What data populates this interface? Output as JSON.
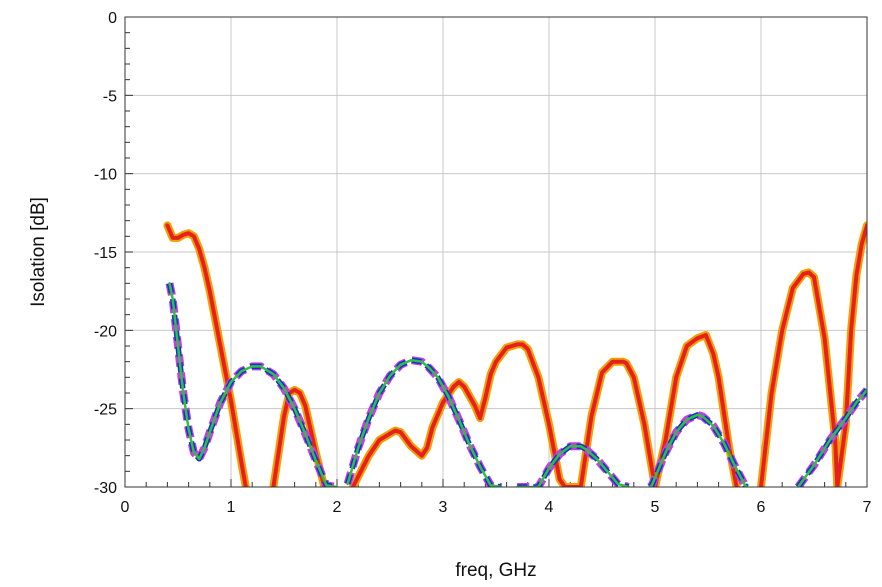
{
  "chart_data": {
    "type": "line",
    "xlabel": "freq, GHz",
    "ylabel": "Isolation [dB]",
    "xlim": [
      0,
      7
    ],
    "ylim": [
      -30,
      0
    ],
    "xticks": [
      0,
      1,
      2,
      3,
      4,
      5,
      6,
      7
    ],
    "yticks": [
      0,
      -5,
      -10,
      -15,
      -20,
      -25,
      -30
    ],
    "grid": true,
    "series": [
      {
        "color": "#f0a000",
        "stroke": "thick",
        "x": [
          0.4,
          0.45,
          0.5,
          0.55,
          0.6,
          0.65,
          0.7,
          0.75,
          0.8,
          0.9,
          1.0,
          1.05,
          1.1,
          1.14,
          1.2,
          1.3,
          1.4,
          1.5,
          1.55,
          1.6,
          1.65,
          1.7,
          1.8,
          1.88,
          2.0,
          2.15,
          2.3,
          2.4,
          2.5,
          2.55,
          2.6,
          2.7,
          2.8,
          2.85,
          2.9,
          3.0,
          3.1,
          3.15,
          3.2,
          3.3,
          3.35,
          3.4,
          3.45,
          3.5,
          3.6,
          3.7,
          3.75,
          3.8,
          3.9,
          4.0,
          4.1,
          4.15,
          4.3,
          4.4,
          4.5,
          4.6,
          4.7,
          4.73,
          4.8,
          4.9,
          4.95,
          5.0,
          5.1,
          5.2,
          5.3,
          5.4,
          5.48,
          5.55,
          5.6,
          5.7,
          5.77,
          5.9,
          6.0,
          6.1,
          6.2,
          6.3,
          6.4,
          6.45,
          6.5,
          6.6,
          6.7,
          6.72,
          6.8,
          6.85,
          6.9,
          6.95,
          7.0
        ],
        "y": [
          -13.3,
          -14.1,
          -14.1,
          -13.9,
          -13.8,
          -14.0,
          -14.8,
          -16.0,
          -17.5,
          -21.0,
          -24.5,
          -26.5,
          -28.5,
          -30.0,
          null,
          null,
          -30.0,
          -25.5,
          -24.0,
          -23.8,
          -24.0,
          -24.8,
          -27.8,
          -30.0,
          null,
          -30.0,
          -28.0,
          -27.0,
          -26.6,
          -26.4,
          -26.5,
          -27.4,
          -28.0,
          -27.5,
          -26.2,
          -24.6,
          -23.6,
          -23.3,
          -23.6,
          -24.8,
          -25.6,
          -24.3,
          -22.8,
          -22.0,
          -21.1,
          -20.9,
          -20.9,
          -21.2,
          -23.0,
          -26.0,
          -29.5,
          -30.0,
          -30.0,
          -25.5,
          -22.7,
          -22.0,
          -22.0,
          -22.1,
          -23.0,
          -26.0,
          -28.0,
          -30.0,
          -27.0,
          -23.0,
          -21.0,
          -20.5,
          -20.3,
          -21.5,
          -23.0,
          -27.5,
          -30.0,
          null,
          -30.0,
          -24.0,
          -20.0,
          -17.3,
          -16.4,
          -16.3,
          -16.6,
          -20.5,
          -27.0,
          -30.0,
          -26.0,
          -20.0,
          -16.5,
          -14.5,
          -13.3
        ]
      },
      {
        "color": "#e62020",
        "stroke": "thick",
        "x": [
          0.4,
          0.45,
          0.5,
          0.55,
          0.6,
          0.65,
          0.7,
          0.75,
          0.8,
          0.9,
          1.0,
          1.05,
          1.1,
          1.14,
          1.2,
          1.3,
          1.4,
          1.5,
          1.55,
          1.6,
          1.65,
          1.7,
          1.8,
          1.88,
          2.0,
          2.15,
          2.3,
          2.4,
          2.5,
          2.55,
          2.6,
          2.7,
          2.8,
          2.85,
          2.9,
          3.0,
          3.1,
          3.15,
          3.2,
          3.3,
          3.35,
          3.4,
          3.45,
          3.5,
          3.6,
          3.7,
          3.75,
          3.8,
          3.9,
          4.0,
          4.1,
          4.15,
          4.3,
          4.4,
          4.5,
          4.6,
          4.7,
          4.73,
          4.8,
          4.9,
          4.95,
          5.0,
          5.1,
          5.2,
          5.3,
          5.4,
          5.48,
          5.55,
          5.6,
          5.7,
          5.77,
          5.9,
          6.0,
          6.1,
          6.2,
          6.3,
          6.4,
          6.45,
          6.5,
          6.6,
          6.7,
          6.72,
          6.8,
          6.85,
          6.9,
          6.95,
          7.0
        ],
        "y": [
          -13.3,
          -14.1,
          -14.1,
          -13.9,
          -13.8,
          -14.0,
          -14.8,
          -16.0,
          -17.5,
          -21.0,
          -24.5,
          -26.5,
          -28.5,
          -30.0,
          null,
          null,
          -30.0,
          -25.5,
          -24.0,
          -23.8,
          -24.0,
          -24.8,
          -27.8,
          -30.0,
          null,
          -30.0,
          -28.0,
          -27.0,
          -26.6,
          -26.4,
          -26.5,
          -27.4,
          -28.0,
          -27.5,
          -26.2,
          -24.6,
          -23.6,
          -23.3,
          -23.6,
          -24.8,
          -25.6,
          -24.3,
          -22.8,
          -22.0,
          -21.1,
          -20.9,
          -20.9,
          -21.2,
          -23.0,
          -26.0,
          -29.5,
          -30.0,
          -30.0,
          -25.5,
          -22.7,
          -22.0,
          -22.0,
          -22.1,
          -23.0,
          -26.0,
          -28.0,
          -30.0,
          -27.0,
          -23.0,
          -21.0,
          -20.5,
          -20.3,
          -21.5,
          -23.0,
          -27.5,
          -30.0,
          null,
          -30.0,
          -24.0,
          -20.0,
          -17.3,
          -16.4,
          -16.3,
          -16.6,
          -20.5,
          -27.0,
          -30.0,
          -26.0,
          -20.0,
          -16.5,
          -14.5,
          -13.3
        ]
      },
      {
        "color": "#c040e0",
        "stroke": "dashed-thick",
        "x": [
          0.42,
          0.45,
          0.5,
          0.55,
          0.6,
          0.65,
          0.7,
          0.75,
          0.8,
          0.9,
          1.0,
          1.1,
          1.2,
          1.28,
          1.4,
          1.5,
          1.6,
          1.7,
          1.8,
          1.9,
          2.0,
          2.02,
          2.1,
          2.2,
          2.3,
          2.4,
          2.5,
          2.6,
          2.7,
          2.8,
          2.87,
          2.95,
          3.05,
          3.15,
          3.25,
          3.35,
          3.45,
          3.55,
          3.56,
          3.7,
          3.9,
          4.0,
          4.1,
          4.2,
          4.3,
          4.35,
          4.45,
          4.55,
          4.65,
          4.75,
          4.85,
          4.95,
          4.97,
          5.1,
          5.2,
          5.3,
          5.4,
          5.45,
          5.55,
          5.65,
          5.75,
          5.85,
          5.87,
          6.3,
          6.35,
          6.5,
          6.65,
          6.8,
          6.9,
          7.0
        ],
        "y": [
          -17.0,
          -18.0,
          -21.0,
          -24.0,
          -26.3,
          -27.8,
          -28.2,
          -27.5,
          -26.5,
          -24.6,
          -23.3,
          -22.6,
          -22.3,
          -22.3,
          -22.8,
          -23.7,
          -25.0,
          -26.6,
          -28.3,
          -29.9,
          -30.0,
          null,
          -29.8,
          -27.5,
          -25.6,
          -24.0,
          -22.9,
          -22.2,
          -21.9,
          -22.0,
          -22.4,
          -23.0,
          -24.2,
          -25.7,
          -27.3,
          -28.7,
          -29.9,
          -30.0,
          null,
          -30.0,
          -30.0,
          -28.8,
          -27.9,
          -27.4,
          -27.4,
          -27.6,
          -28.2,
          -29.0,
          -29.8,
          -30.0,
          null,
          -30.0,
          -29.9,
          -27.8,
          -26.5,
          -25.7,
          -25.4,
          -25.5,
          -26.1,
          -27.2,
          -28.6,
          -29.9,
          -30.0,
          null,
          -30.0,
          -28.6,
          -27.0,
          -25.6,
          -24.6,
          -23.8
        ]
      },
      {
        "color": "#1830d0",
        "stroke": "dashed-thick",
        "x": [
          0.42,
          0.45,
          0.5,
          0.55,
          0.6,
          0.65,
          0.7,
          0.75,
          0.8,
          0.9,
          1.0,
          1.1,
          1.2,
          1.28,
          1.4,
          1.5,
          1.6,
          1.7,
          1.8,
          1.9,
          2.0,
          2.02,
          2.1,
          2.2,
          2.3,
          2.4,
          2.5,
          2.6,
          2.7,
          2.8,
          2.87,
          2.95,
          3.05,
          3.15,
          3.25,
          3.35,
          3.45,
          3.55,
          3.56,
          3.7,
          3.9,
          4.0,
          4.1,
          4.2,
          4.3,
          4.35,
          4.45,
          4.55,
          4.65,
          4.75,
          4.85,
          4.95,
          4.97,
          5.1,
          5.2,
          5.3,
          5.4,
          5.45,
          5.55,
          5.65,
          5.75,
          5.85,
          5.87,
          6.3,
          6.35,
          6.5,
          6.65,
          6.8,
          6.9,
          7.0
        ],
        "y": [
          -17.0,
          -18.0,
          -21.0,
          -24.0,
          -26.3,
          -27.8,
          -28.2,
          -27.5,
          -26.5,
          -24.6,
          -23.3,
          -22.6,
          -22.3,
          -22.3,
          -22.8,
          -23.7,
          -25.0,
          -26.6,
          -28.3,
          -29.9,
          -30.0,
          null,
          -29.8,
          -27.5,
          -25.6,
          -24.0,
          -22.9,
          -22.2,
          -21.9,
          -22.0,
          -22.4,
          -23.0,
          -24.2,
          -25.7,
          -27.3,
          -28.7,
          -29.9,
          -30.0,
          null,
          -30.0,
          -30.0,
          -28.8,
          -27.9,
          -27.4,
          -27.4,
          -27.6,
          -28.2,
          -29.0,
          -29.8,
          -30.0,
          null,
          -30.0,
          -29.9,
          -27.8,
          -26.5,
          -25.7,
          -25.4,
          -25.5,
          -26.1,
          -27.2,
          -28.6,
          -29.9,
          -30.0,
          null,
          -30.0,
          -28.6,
          -27.0,
          -25.6,
          -24.6,
          -23.8
        ]
      },
      {
        "color": "#30c040",
        "stroke": "solid",
        "x": [
          0.42,
          0.45,
          0.5,
          0.55,
          0.6,
          0.65,
          0.7,
          0.75,
          0.8,
          0.9,
          1.0,
          1.1,
          1.2,
          1.28,
          1.4,
          1.5,
          1.6,
          1.7,
          1.8,
          1.9,
          2.0,
          2.02,
          2.1,
          2.2,
          2.3,
          2.4,
          2.5,
          2.6,
          2.7,
          2.8,
          2.87,
          2.95,
          3.05,
          3.15,
          3.25,
          3.35,
          3.45,
          3.55,
          3.56,
          3.7,
          3.9,
          4.0,
          4.1,
          4.2,
          4.3,
          4.35,
          4.45,
          4.55,
          4.65,
          4.75,
          4.85,
          4.95,
          4.97,
          5.1,
          5.2,
          5.3,
          5.4,
          5.45,
          5.55,
          5.65,
          5.75,
          5.85,
          5.87,
          6.3,
          6.35,
          6.5,
          6.65,
          6.8,
          6.9,
          7.0
        ],
        "y": [
          -17.0,
          -18.0,
          -21.0,
          -24.0,
          -26.3,
          -27.8,
          -28.2,
          -27.5,
          -26.5,
          -24.6,
          -23.3,
          -22.6,
          -22.3,
          -22.3,
          -22.8,
          -23.7,
          -25.0,
          -26.6,
          -28.3,
          -29.9,
          -30.0,
          null,
          -29.8,
          -27.5,
          -25.6,
          -24.0,
          -22.9,
          -22.2,
          -21.9,
          -22.0,
          -22.4,
          -23.0,
          -24.2,
          -25.7,
          -27.3,
          -28.7,
          -29.9,
          -30.0,
          null,
          -30.0,
          -30.0,
          -28.8,
          -27.9,
          -27.4,
          -27.4,
          -27.6,
          -28.2,
          -29.0,
          -29.8,
          -30.0,
          null,
          -30.0,
          -29.9,
          -27.8,
          -26.5,
          -25.7,
          -25.4,
          -25.5,
          -26.1,
          -27.2,
          -28.6,
          -29.9,
          -30.0,
          null,
          -30.0,
          -28.6,
          -27.0,
          -25.6,
          -24.6,
          -23.8
        ]
      }
    ]
  }
}
